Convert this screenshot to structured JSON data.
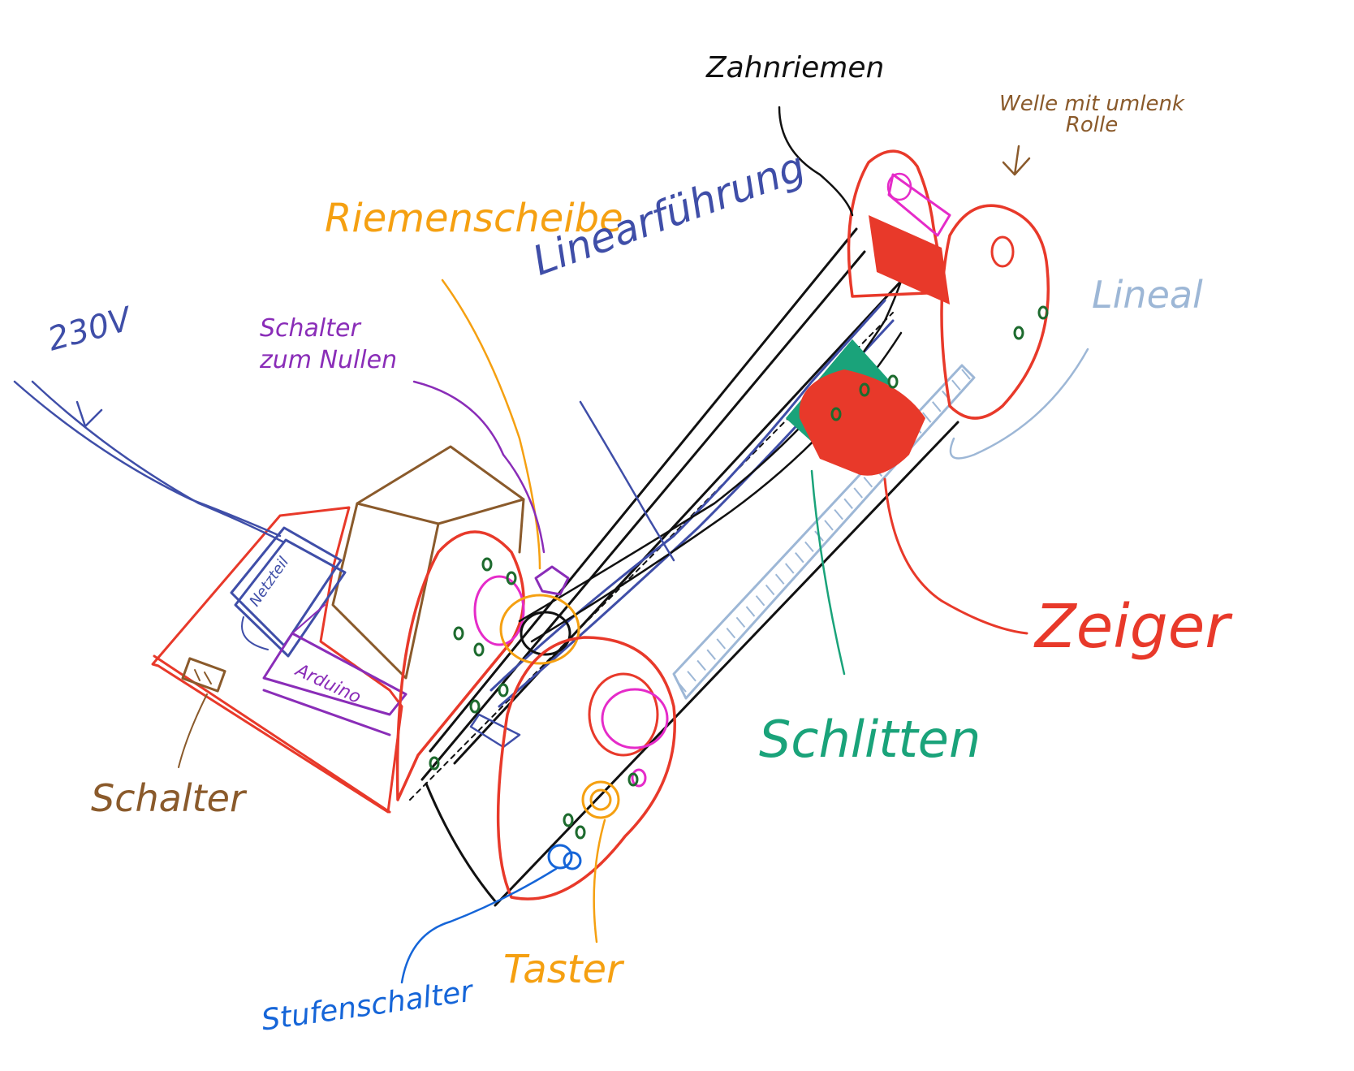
{
  "colors": {
    "frame": "#e8392a",
    "rail": "#111111",
    "guide": "#3f4ea8",
    "belt_wheel": "#f5a011",
    "carriage": "#1aa37a",
    "ruler": "#9db7d6",
    "switch_brown": "#8a5a2b",
    "purple": "#8a2db8",
    "magenta": "#e52bc9",
    "blue": "#1565d8",
    "dots": "#1d6b2e"
  },
  "labels": {
    "zahnriemen": "Zahnriemen",
    "welle": "Welle mit umlenk Rolle",
    "riemenscheibe": "Riemenscheibe",
    "linearfuehrung": "Linearführung",
    "lineal": "Lineal",
    "v230": "230V",
    "schalter_nullen": "Schalter zum Nullen",
    "netzteil": "Netzteil",
    "arduino": "Arduino",
    "schalter": "Schalter",
    "zeiger": "Zeiger",
    "schlitten": "Schlitten",
    "taster": "Taster",
    "stufenschalter": "Stufenschalter"
  }
}
